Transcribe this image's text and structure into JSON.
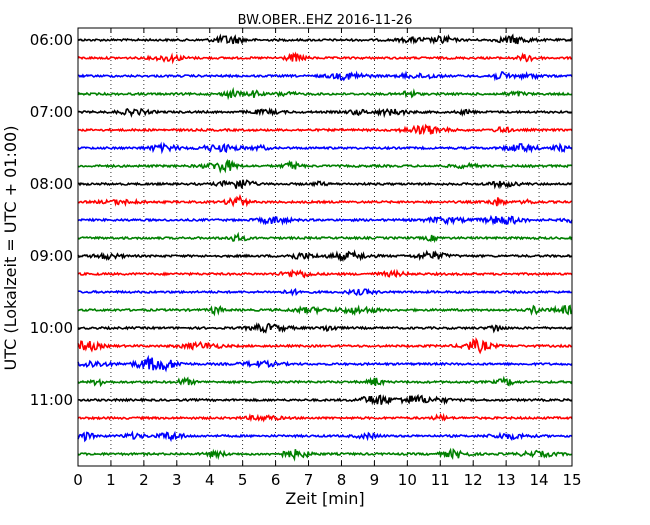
{
  "chart_data": {
    "type": "line",
    "title": "BW.OBER..EHZ 2016-11-26",
    "xlabel": "Zeit  [min]",
    "ylabel": "UTC (Lokalzeit = UTC + 01:00)",
    "xlim": [
      0,
      15
    ],
    "x_ticks": [
      "0",
      "1",
      "2",
      "3",
      "4",
      "5",
      "6",
      "7",
      "8",
      "9",
      "10",
      "11",
      "12",
      "13",
      "14",
      "15"
    ],
    "y_tick_labels": [
      "06:00",
      "07:00",
      "08:00",
      "09:00",
      "10:00",
      "11:00"
    ],
    "grid": "vertical dotted",
    "trace_interval_min": 15,
    "traces": [
      {
        "start": "06:00",
        "color": "#000000"
      },
      {
        "start": "06:15",
        "color": "#ff0000"
      },
      {
        "start": "06:30",
        "color": "#0000ff"
      },
      {
        "start": "06:45",
        "color": "#008000"
      },
      {
        "start": "07:00",
        "color": "#000000"
      },
      {
        "start": "07:15",
        "color": "#ff0000"
      },
      {
        "start": "07:30",
        "color": "#0000ff"
      },
      {
        "start": "07:45",
        "color": "#008000"
      },
      {
        "start": "08:00",
        "color": "#000000"
      },
      {
        "start": "08:15",
        "color": "#ff0000"
      },
      {
        "start": "08:30",
        "color": "#0000ff"
      },
      {
        "start": "08:45",
        "color": "#008000"
      },
      {
        "start": "09:00",
        "color": "#000000"
      },
      {
        "start": "09:15",
        "color": "#ff0000"
      },
      {
        "start": "09:30",
        "color": "#0000ff"
      },
      {
        "start": "09:45",
        "color": "#008000"
      },
      {
        "start": "10:00",
        "color": "#000000"
      },
      {
        "start": "10:15",
        "color": "#ff0000"
      },
      {
        "start": "10:30",
        "color": "#0000ff"
      },
      {
        "start": "10:45",
        "color": "#008000"
      },
      {
        "start": "11:00",
        "color": "#000000"
      },
      {
        "start": "11:15",
        "color": "#ff0000"
      },
      {
        "start": "11:30",
        "color": "#0000ff"
      },
      {
        "start": "11:45",
        "color": "#008000"
      }
    ]
  }
}
